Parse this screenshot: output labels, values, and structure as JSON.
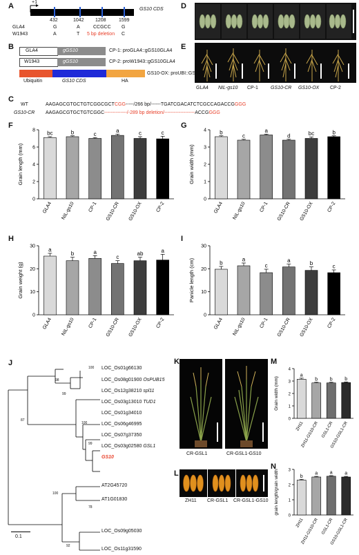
{
  "panels": {
    "A": {
      "letter": "A",
      "plus_one": "+1",
      "cds_label": "GS10 CDS",
      "positions": [
        "432",
        "1042",
        "1208",
        "1599"
      ],
      "rows": [
        {
          "name": "GLA4",
          "values": [
            "G",
            "A",
            "CCGCC",
            "G"
          ]
        },
        {
          "name": "W1943",
          "values": [
            "A",
            "T",
            "5 bp deletion",
            "C"
          ]
        }
      ]
    },
    "B": {
      "letter": "B",
      "constructs": [
        {
          "promoter": "GLA4",
          "gene": "gGS10",
          "label": "CP-1: proGLA4::gGS10GLA4"
        },
        {
          "promoter": "W1943",
          "gene": "gGS10",
          "label": "CP-2: proW1943::gGS10GLA4"
        }
      ],
      "ox": {
        "seg1": "Ubiquitin",
        "seg2": "GS10 CDS",
        "seg3": "HA",
        "label": "GS10-OX: proUBI::GS10-HA",
        "colors": {
          "ubiquitin": "#e8552e",
          "cds": "#1f2ad8",
          "ha": "#f2a541"
        }
      }
    },
    "C": {
      "letter": "C",
      "wt_name": "WT",
      "wt_seq": "AAGAGCGTGCTGTCGGCGCT",
      "wt_pam": "CGG",
      "wt_mid": "-----/266 bp/------TGATCGACATCTCGCCAGACCG",
      "wt_pam2": "GGG",
      "cr_name": "GS10-CR",
      "cr_seq": "AAGAGCGTGCTGTCGGC",
      "cr_del": "--------------/-289 bp deletion/-------------------",
      "cr_end": "ACCG",
      "cr_pam2": "GGG"
    },
    "D": {
      "letter": "D"
    },
    "E": {
      "letter": "E",
      "labels": [
        "GLA4",
        "NIL-gs10",
        "CP-1",
        "GS10-CR",
        "GS10-OX",
        "CP-2"
      ]
    },
    "J": {
      "letter": "J",
      "scale": "0.1",
      "leaves": [
        {
          "id": "LOC_Os01g66130",
          "gene": ""
        },
        {
          "id": "LOC_Os08g01900",
          "gene": "OsPUB15"
        },
        {
          "id": "LOC_Os12g38210",
          "gene": "spl11"
        },
        {
          "id": "LOC_Os03g13010",
          "gene": "TUD1"
        },
        {
          "id": "LOC_Os01g34010",
          "gene": ""
        },
        {
          "id": "LOC_Os06g46995",
          "gene": ""
        },
        {
          "id": "LOC_Os07g37350",
          "gene": ""
        },
        {
          "id": "LOC_Os03g02580",
          "gene": "GSL1"
        },
        {
          "id": "GS10",
          "gene": ""
        },
        {
          "id": "AT2G45720",
          "gene": ""
        },
        {
          "id": "AT1G01830",
          "gene": ""
        },
        {
          "id": "LOC_Os09g05030",
          "gene": ""
        },
        {
          "id": "LOC_Os11g31590",
          "gene": ""
        }
      ],
      "bootstrap": [
        "100",
        "98",
        "99",
        "87",
        "100",
        "99",
        "100",
        "78",
        "92"
      ]
    },
    "K": {
      "letter": "K",
      "labels": [
        "CR-GSL1",
        "CR-GSL1-GS10"
      ]
    },
    "L": {
      "letter": "L",
      "labels": [
        "ZH11",
        "CR-GSL1",
        "CR-GSL1-GS10"
      ]
    }
  },
  "chart_data": [
    {
      "id": "F",
      "type": "bar",
      "ylabel": "Grain length (mm)",
      "ylim": [
        0,
        8
      ],
      "yticks": [
        0,
        2,
        4,
        6,
        8
      ],
      "categories": [
        "GLA4",
        "NIL-gs10",
        "CP-1",
        "GS10-CR",
        "GS10-OX",
        "CP-2"
      ],
      "values": [
        7.1,
        7.2,
        7.0,
        7.35,
        7.0,
        6.95
      ],
      "errors": [
        0.1,
        0.1,
        0.1,
        0.15,
        0.2,
        0.3
      ],
      "letters": [
        "bc",
        "b",
        "c",
        "a",
        "c",
        "c"
      ],
      "colors": [
        "#d9d9d9",
        "#a6a6a6",
        "#8c8c8c",
        "#737373",
        "#3d3d3d",
        "#000000"
      ]
    },
    {
      "id": "G",
      "type": "bar",
      "ylabel": "Grain width (mm)",
      "ylim": [
        0,
        4
      ],
      "yticks": [
        0,
        1,
        2,
        3,
        4
      ],
      "categories": [
        "GLA4",
        "NIL-gs10",
        "CP-1",
        "GS10-CR",
        "GS10-OX",
        "CP-2"
      ],
      "values": [
        3.6,
        3.4,
        3.7,
        3.4,
        3.5,
        3.6
      ],
      "errors": [
        0.05,
        0.05,
        0.05,
        0.05,
        0.08,
        0.05
      ],
      "letters": [
        "b",
        "c",
        "a",
        "d",
        "bc",
        "b"
      ],
      "colors": [
        "#d9d9d9",
        "#a6a6a6",
        "#8c8c8c",
        "#737373",
        "#3d3d3d",
        "#000000"
      ]
    },
    {
      "id": "H",
      "type": "bar",
      "ylabel": "Grain weight (g)",
      "ylim": [
        0,
        30
      ],
      "yticks": [
        0,
        10,
        20,
        30
      ],
      "categories": [
        "GLA4",
        "NIL-gs10",
        "CP-1",
        "GS10-CR",
        "GS10-OX",
        "CP-2"
      ],
      "values": [
        25.5,
        23.5,
        24.5,
        22.3,
        23.5,
        23.8
      ],
      "errors": [
        1.2,
        1.5,
        1.2,
        1.2,
        1.5,
        2.5
      ],
      "letters": [
        "a",
        "b",
        "a",
        "c",
        "ab",
        "a"
      ],
      "colors": [
        "#d9d9d9",
        "#a6a6a6",
        "#8c8c8c",
        "#737373",
        "#3d3d3d",
        "#000000"
      ]
    },
    {
      "id": "I",
      "type": "bar",
      "ylabel": "Panicle length (cm)",
      "ylim": [
        0,
        30
      ],
      "yticks": [
        0,
        10,
        20,
        30
      ],
      "categories": [
        "GLA4",
        "NIL-gs10",
        "CP-1",
        "GS10-CR",
        "GS10-OX",
        "CP-2"
      ],
      "values": [
        19.8,
        21.3,
        18.3,
        20.8,
        19.3,
        18.3
      ],
      "errors": [
        1.2,
        1.2,
        1.5,
        1.2,
        1.5,
        1.2
      ],
      "letters": [
        "b",
        "a",
        "c",
        "a",
        "b",
        "c"
      ],
      "colors": [
        "#d9d9d9",
        "#a6a6a6",
        "#8c8c8c",
        "#737373",
        "#3d3d3d",
        "#000000"
      ]
    },
    {
      "id": "M",
      "type": "bar",
      "ylabel": "Grain width (mm)",
      "ylim": [
        0,
        4
      ],
      "yticks": [
        0,
        1,
        2,
        3,
        4
      ],
      "categories": [
        "ZH11",
        "ZH11-GS10-CR",
        "GSL1-CR",
        "GS10-GSL1-CR"
      ],
      "values": [
        3.15,
        2.85,
        2.85,
        2.88
      ],
      "errors": [
        0.08,
        0.05,
        0.05,
        0.05
      ],
      "letters": [
        "a",
        "b",
        "b",
        "b"
      ],
      "colors": [
        "#d9d9d9",
        "#a6a6a6",
        "#6e6e6e",
        "#2b2b2b"
      ]
    },
    {
      "id": "N",
      "type": "bar",
      "ylabel": "grain length/grain width",
      "ylim": [
        0,
        3
      ],
      "yticks": [
        0,
        1,
        2,
        3
      ],
      "categories": [
        "ZH11",
        "ZH11-GS10-CR",
        "GSL1-CR",
        "GS10-GSL1-CR"
      ],
      "values": [
        2.3,
        2.5,
        2.55,
        2.5
      ],
      "errors": [
        0.05,
        0.04,
        0.04,
        0.04
      ],
      "letters": [
        "b",
        "a",
        "a",
        "a"
      ],
      "colors": [
        "#d9d9d9",
        "#a6a6a6",
        "#6e6e6e",
        "#2b2b2b"
      ]
    }
  ]
}
